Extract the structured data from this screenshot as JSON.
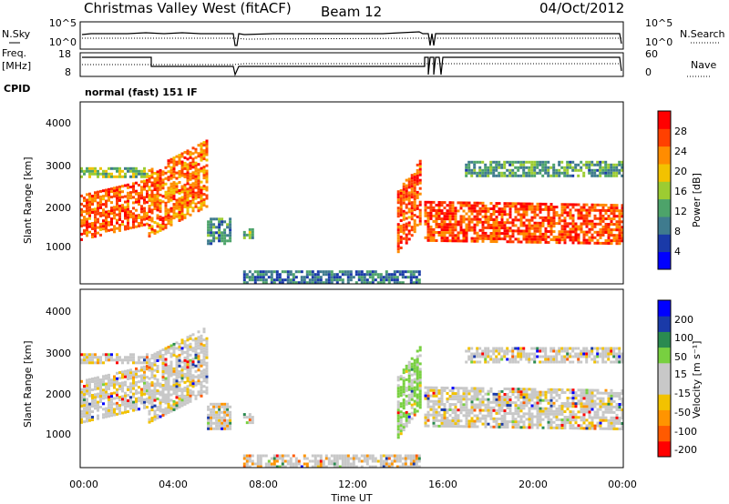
{
  "header": {
    "station": "Christmas Valley West (fitACF)",
    "beam": "Beam 12",
    "date": "04/Oct/2012"
  },
  "left_labels": {
    "nsky": "N.Sky",
    "freq_line1": "Freq.",
    "freq_line2": "[MHz]",
    "cpid": "CPID"
  },
  "right_labels": {
    "nsearch": "N.Search",
    "nave": "Nave"
  },
  "cpid_text": "normal (fast) 151 IF",
  "chart_data": [
    {
      "type": "line",
      "name": "noise",
      "left_ticks": [
        "10^5",
        "10^0"
      ],
      "right_ticks": [
        "10^5",
        "10^0"
      ],
      "series": [
        {
          "name": "N.Sky"
        },
        {
          "name": "N.Search"
        }
      ]
    },
    {
      "type": "line",
      "name": "frequency-nave",
      "left_ticks": [
        "18",
        "8"
      ],
      "right_ticks": [
        "60",
        "0"
      ],
      "ylim_left": [
        8,
        18
      ],
      "ylim_right": [
        0,
        60
      ],
      "series": [
        {
          "name": "Freq."
        },
        {
          "name": "Nave"
        }
      ]
    },
    {
      "type": "heatmap",
      "name": "power",
      "ylabel": "Slant Range [km]",
      "yticks": [
        "4000",
        "3000",
        "2000",
        "1000"
      ],
      "ylim": [
        180,
        4500
      ],
      "colorbar_label": "Power [dB]",
      "colorbar_ticks": [
        "28",
        "24",
        "20",
        "16",
        "12",
        "8",
        "4"
      ],
      "colorbar_colors": [
        "#0000ff",
        "#1a3aa8",
        "#3f7b8e",
        "#4da36a",
        "#9ccc32",
        "#f2c200",
        "#ff8c00",
        "#ff4000",
        "#ff0000"
      ]
    },
    {
      "type": "heatmap",
      "name": "velocity",
      "ylabel": "Slant Range [km]",
      "yticks": [
        "4000",
        "3000",
        "2000",
        "1000"
      ],
      "ylim": [
        180,
        4500
      ],
      "colorbar_label": "Velocity [m s⁻¹]",
      "colorbar_ticks": [
        "200",
        "100",
        "50",
        "15",
        "-15",
        "-50",
        "-100",
        "-200"
      ],
      "colorbar_colors": [
        "#ff0000",
        "#ff5a00",
        "#ff9400",
        "#f2c200",
        "#c8c8c8",
        "#c8c8c8",
        "#78d040",
        "#2a8a50",
        "#1a3aa8",
        "#0000ff"
      ]
    }
  ],
  "xaxis": {
    "label": "Time UT",
    "ticks": [
      "00:00",
      "04:00",
      "08:00",
      "12:00",
      "16:00",
      "20:00",
      "00:00"
    ]
  }
}
